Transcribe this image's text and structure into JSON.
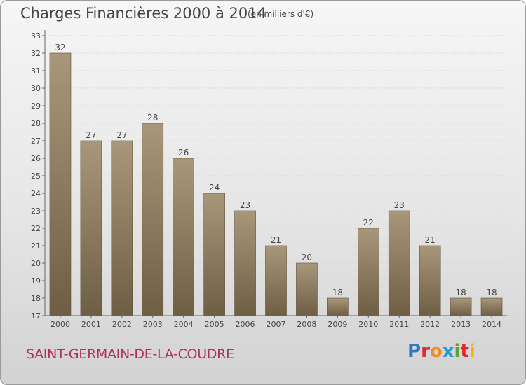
{
  "header": {
    "title": "Charges Financières 2000 à 2014",
    "subtitle": "(en milliers d'€)"
  },
  "footer": {
    "commune": "SAINT-GERMAIN-DE-LA-COUDRE",
    "logo_text": "Proxiti",
    "logo_colors": [
      "#2f79c0",
      "#e4262a",
      "#f28c1c",
      "#1f9ad6",
      "#5aa530",
      "#e4262a",
      "#f2b705"
    ]
  },
  "colors": {
    "bar_top": "#a8977a",
    "bar_bottom": "#6e5e44",
    "text": "#444444"
  },
  "chart_data": {
    "type": "bar",
    "categories": [
      "2000",
      "2001",
      "2002",
      "2003",
      "2004",
      "2005",
      "2006",
      "2007",
      "2008",
      "2009",
      "2010",
      "2011",
      "2012",
      "2013",
      "2014"
    ],
    "values": [
      32,
      27,
      27,
      28,
      26,
      24,
      23,
      21,
      20,
      18,
      22,
      23,
      21,
      18,
      18
    ],
    "title": "Charges Financières 2000 à 2014",
    "ylabel": "",
    "xlabel": "",
    "ylim": [
      17,
      33
    ],
    "yticks": [
      17,
      18,
      19,
      20,
      21,
      22,
      23,
      24,
      25,
      26,
      27,
      28,
      29,
      30,
      31,
      32,
      33
    ],
    "grid": true,
    "data_labels": true
  }
}
